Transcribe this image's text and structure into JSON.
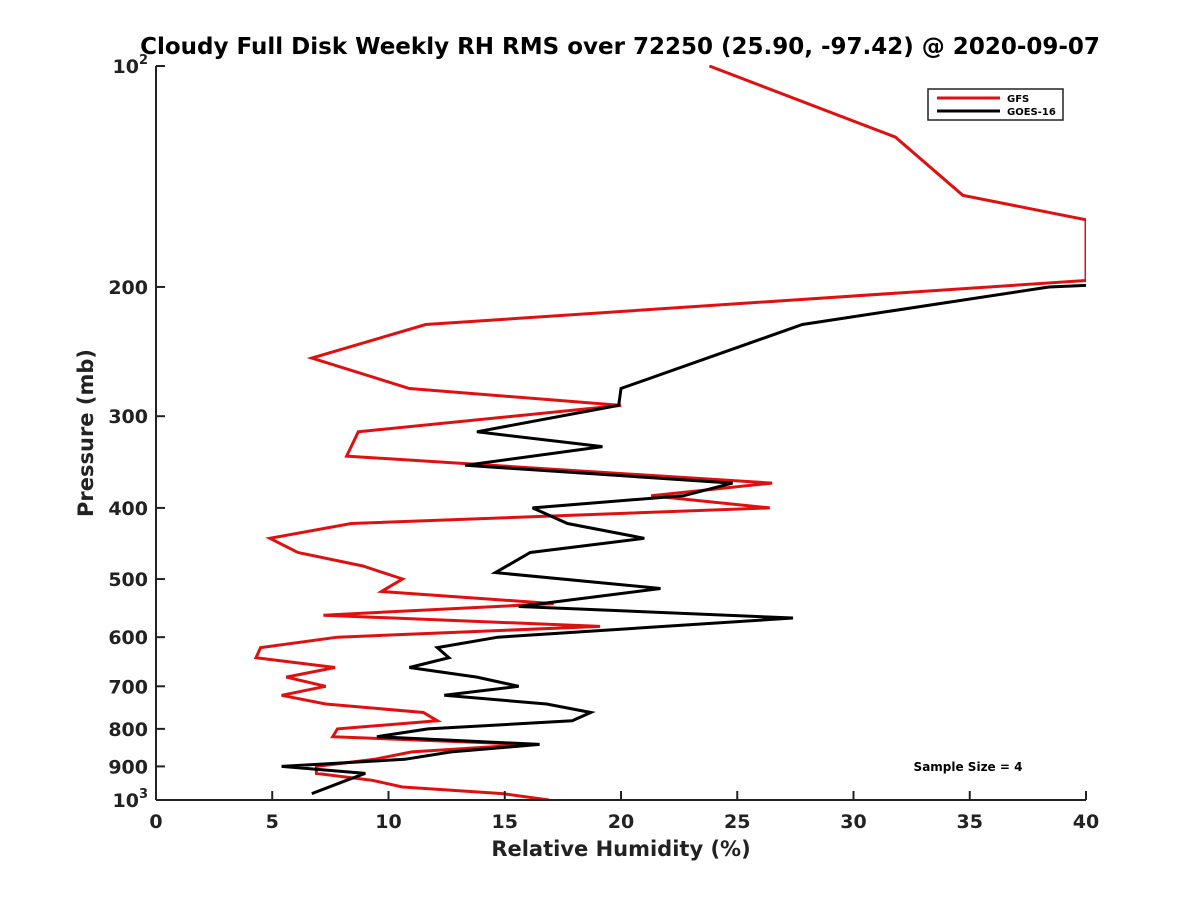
{
  "chart_data": {
    "type": "line",
    "title": "Cloudy Full Disk Weekly RH RMS over 72250 (25.90, -97.42) @ 2020-09-07",
    "xlabel": "Relative Humidity (%)",
    "ylabel": "Pressure (mb)",
    "xlim": [
      0,
      40
    ],
    "ylim": [
      100,
      1000
    ],
    "y_scale": "log",
    "y_reversed": true,
    "x_ticks": [
      "0",
      "5",
      "10",
      "15",
      "20",
      "25",
      "30",
      "35",
      "40"
    ],
    "y_ticks": [
      {
        "value": 100,
        "label": "10",
        "sup": "2"
      },
      {
        "value": 200,
        "label": "200",
        "sup": ""
      },
      {
        "value": 300,
        "label": "300",
        "sup": ""
      },
      {
        "value": 400,
        "label": "400",
        "sup": ""
      },
      {
        "value": 500,
        "label": "500",
        "sup": ""
      },
      {
        "value": 600,
        "label": "600",
        "sup": ""
      },
      {
        "value": 700,
        "label": "700",
        "sup": ""
      },
      {
        "value": 800,
        "label": "800",
        "sup": ""
      },
      {
        "value": 900,
        "label": "900",
        "sup": ""
      },
      {
        "value": 1000,
        "label": "10",
        "sup": "3"
      }
    ],
    "legend_position": "top-right",
    "annotation": "Sample Size = 4",
    "series": [
      {
        "name": "GFS",
        "color": "#e01010",
        "points": [
          [
            23.8,
            100
          ],
          [
            31.8,
            125
          ],
          [
            34.7,
            150
          ],
          [
            40,
            162
          ],
          [
            40,
            196
          ],
          [
            11.6,
            225
          ],
          [
            6.7,
            250
          ],
          [
            10.9,
            275
          ],
          [
            20,
            290
          ],
          [
            8.7,
            315
          ],
          [
            8.2,
            340
          ],
          [
            26.5,
            370
          ],
          [
            21.3,
            385
          ],
          [
            26.4,
            400
          ],
          [
            8.4,
            420
          ],
          [
            4.9,
            440
          ],
          [
            6.1,
            460
          ],
          [
            8.9,
            480
          ],
          [
            10.6,
            500
          ],
          [
            9.7,
            520
          ],
          [
            17.1,
            540
          ],
          [
            7.2,
            560
          ],
          [
            19.1,
            580
          ],
          [
            7.8,
            600
          ],
          [
            4.5,
            620
          ],
          [
            4.3,
            640
          ],
          [
            7.7,
            660
          ],
          [
            5.6,
            680
          ],
          [
            7.3,
            700
          ],
          [
            5.4,
            720
          ],
          [
            7.3,
            740
          ],
          [
            11.5,
            760
          ],
          [
            12.1,
            780
          ],
          [
            7.8,
            800
          ],
          [
            7.6,
            820
          ],
          [
            16.1,
            840
          ],
          [
            11.0,
            860
          ],
          [
            9.4,
            880
          ],
          [
            6.9,
            900
          ],
          [
            6.9,
            920
          ],
          [
            9.3,
            940
          ],
          [
            10.6,
            960
          ],
          [
            14.9,
            980
          ],
          [
            16.9,
            1000
          ]
        ]
      },
      {
        "name": "GOES-16",
        "color": "#000000",
        "points": [
          [
            40,
            199
          ],
          [
            38.4,
            200
          ],
          [
            27.8,
            225
          ],
          [
            20,
            275
          ],
          [
            19.9,
            290
          ],
          [
            13.8,
            315
          ],
          [
            19.2,
            330
          ],
          [
            13.3,
            350
          ],
          [
            24.8,
            370
          ],
          [
            22.7,
            385
          ],
          [
            16.2,
            400
          ],
          [
            17.7,
            420
          ],
          [
            21.0,
            440
          ],
          [
            16.1,
            460
          ],
          [
            14.6,
            490
          ],
          [
            21.7,
            515
          ],
          [
            15.6,
            545
          ],
          [
            27.4,
            565
          ],
          [
            14.7,
            600
          ],
          [
            12.1,
            620
          ],
          [
            12.6,
            640
          ],
          [
            10.9,
            660
          ],
          [
            13.8,
            680
          ],
          [
            15.6,
            700
          ],
          [
            12.4,
            720
          ],
          [
            16.8,
            740
          ],
          [
            18.7,
            760
          ],
          [
            17.9,
            780
          ],
          [
            11.7,
            800
          ],
          [
            9.5,
            820
          ],
          [
            16.5,
            840
          ],
          [
            12.7,
            860
          ],
          [
            10.7,
            880
          ],
          [
            5.4,
            900
          ],
          [
            9.0,
            920
          ],
          [
            8.2,
            940
          ],
          [
            6.7,
            980
          ]
        ]
      }
    ]
  }
}
